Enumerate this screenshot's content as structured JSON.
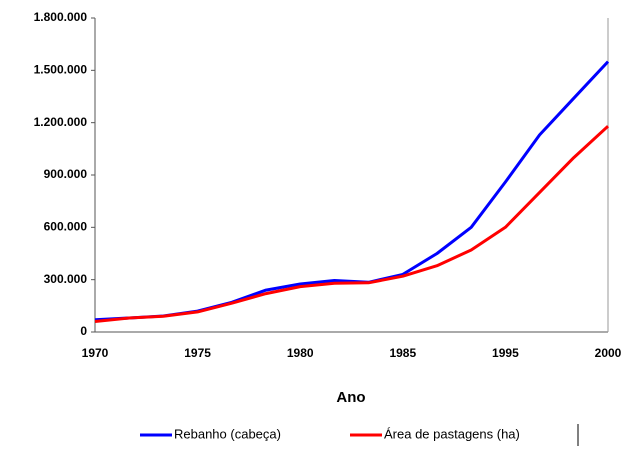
{
  "chart_data": {
    "type": "line",
    "x_label": "Ano",
    "categories": [
      "1970",
      null,
      null,
      "1975",
      null,
      null,
      "1980",
      null,
      null,
      "1985",
      null,
      null,
      "1995",
      null,
      null,
      "2000"
    ],
    "series": [
      {
        "name": "Rebanho (cabeça)",
        "color": "#0000ff",
        "values": [
          70000,
          80000,
          92000,
          120000,
          170000,
          240000,
          275000,
          295000,
          285000,
          330000,
          450000,
          600000,
          860000,
          1130000,
          1340000,
          1550000
        ]
      },
      {
        "name": "Área de pastagens (ha)",
        "color": "#ff0000",
        "values": [
          60000,
          80000,
          90000,
          115000,
          165000,
          220000,
          260000,
          280000,
          282000,
          320000,
          380000,
          470000,
          600000,
          800000,
          1000000,
          1180000
        ]
      }
    ],
    "ylim": [
      0,
      1800000
    ],
    "yticks": [
      0,
      {
        "value": 300000,
        "label": "300.000"
      },
      {
        "value": 600000,
        "label": "600.000"
      },
      {
        "value": 900000,
        "label": "900.000"
      },
      {
        "value": 1200000,
        "label": "1.200.000"
      },
      {
        "value": 1500000,
        "label": "1.500.000"
      },
      {
        "value": 1800000,
        "label": "1.800.000"
      }
    ],
    "legend": "bottom"
  }
}
